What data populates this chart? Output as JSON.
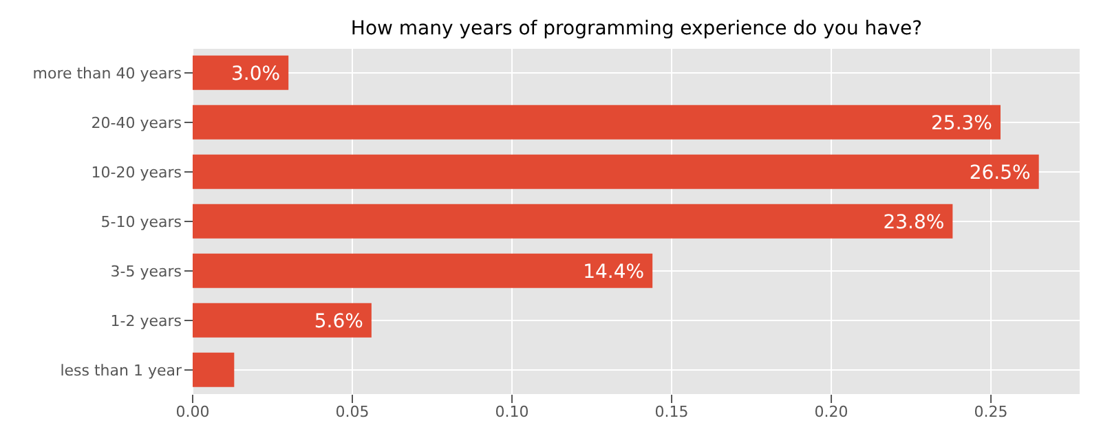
{
  "chart_data": {
    "type": "bar",
    "orientation": "horizontal",
    "title": "How many years of programming experience do you have?",
    "categories": [
      "more than 40 years",
      "20-40 years",
      "10-20 years",
      "5-10 years",
      "3-5 years",
      "1-2 years",
      "less than 1 year"
    ],
    "values": [
      0.03,
      0.253,
      0.265,
      0.238,
      0.144,
      0.056,
      0.013
    ],
    "value_labels": [
      "3.0%",
      "25.3%",
      "26.5%",
      "23.8%",
      "14.4%",
      "5.6%",
      null
    ],
    "color": "#e24a33",
    "xlim": [
      0,
      0.278
    ],
    "xticks": [
      {
        "value": 0,
        "label": "0.00"
      },
      {
        "value": 0.05,
        "label": "0.05"
      },
      {
        "value": 0.1,
        "label": "0.10"
      },
      {
        "value": 0.15,
        "label": "0.15"
      },
      {
        "value": 0.2,
        "label": "0.20"
      },
      {
        "value": 0.25,
        "label": "0.25"
      }
    ],
    "grid": true
  }
}
